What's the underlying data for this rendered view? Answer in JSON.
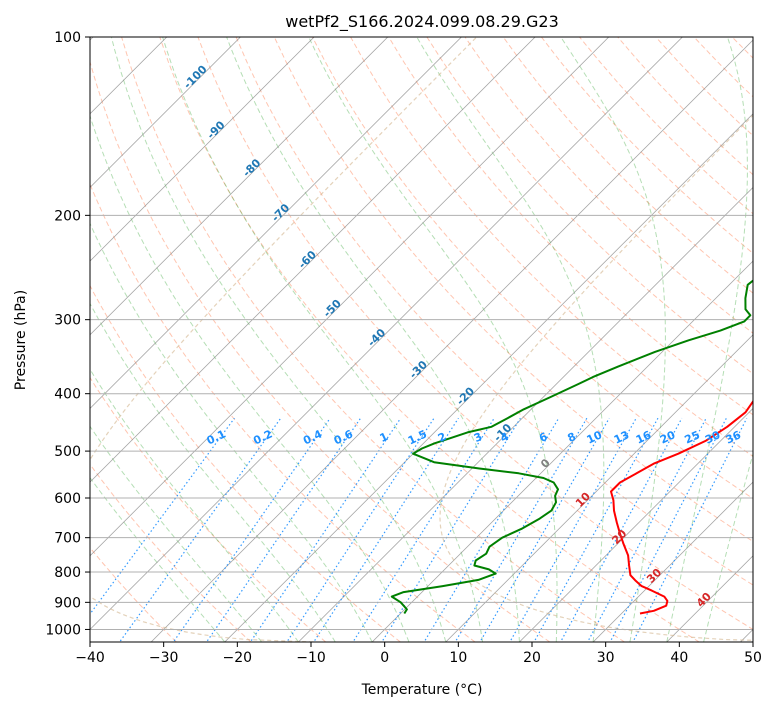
{
  "chart_data": {
    "type": "line",
    "title": "wetPf2_S166.2024.099.08.29.G23",
    "xlabel": "Temperature (°C)",
    "ylabel": "Pressure (hPa)",
    "xlim": [
      -40,
      50
    ],
    "ylim": [
      1050,
      100
    ],
    "y_scale": "log",
    "x_ticks": [
      "−40",
      "−30",
      "−20",
      "−10",
      "0",
      "10",
      "20",
      "30",
      "40",
      "50"
    ],
    "y_ticks": [
      "100",
      "200",
      "300",
      "400",
      "500",
      "600",
      "700",
      "800",
      "900",
      "1000"
    ],
    "grid": true,
    "series": [
      {
        "role": "temperature",
        "color": "#ff0000",
        "points": [
          [
            32.5,
            940
          ],
          [
            34,
            930
          ],
          [
            35,
            912
          ],
          [
            34.5,
            895
          ],
          [
            33.5,
            880
          ],
          [
            31,
            860
          ],
          [
            29,
            845
          ],
          [
            27.5,
            828
          ],
          [
            26,
            810
          ],
          [
            24.5,
            780
          ],
          [
            23,
            750
          ],
          [
            21,
            720
          ],
          [
            19,
            690
          ],
          [
            17,
            660
          ],
          [
            15,
            630
          ],
          [
            13.5,
            605
          ],
          [
            12,
            585
          ],
          [
            12,
            565
          ],
          [
            13,
            545
          ],
          [
            14,
            525
          ],
          [
            16,
            505
          ],
          [
            18,
            480
          ],
          [
            19,
            455
          ],
          [
            19.5,
            430
          ],
          [
            19,
            410
          ],
          [
            20,
            395
          ],
          [
            20.5,
            380
          ],
          [
            20,
            365
          ],
          [
            18.5,
            345
          ],
          [
            17,
            330
          ],
          [
            15.5,
            312
          ],
          [
            14,
            295
          ],
          [
            13,
            282
          ],
          [
            11.5,
            270
          ],
          [
            9.5,
            255
          ],
          [
            7.5,
            238
          ],
          [
            5.5,
            222
          ],
          [
            4,
            206
          ],
          [
            3,
            194
          ],
          [
            1.5,
            180
          ],
          [
            0,
            165
          ],
          [
            -1,
            150
          ],
          [
            -1.5,
            140
          ],
          [
            -2,
            130
          ],
          [
            -2.5,
            122
          ],
          [
            -2.5,
            116
          ],
          [
            -2,
            110
          ],
          [
            -1,
            104
          ],
          [
            0.5,
            100
          ]
        ]
      },
      {
        "role": "dewpoint",
        "color": "#008000",
        "points": [
          [
            0.5,
            940
          ],
          [
            0.3,
            925
          ],
          [
            -1.5,
            900
          ],
          [
            -3.5,
            880
          ],
          [
            -2.5,
            865
          ],
          [
            2,
            845
          ],
          [
            6,
            825
          ],
          [
            7.5,
            805
          ],
          [
            6,
            792
          ],
          [
            3.5,
            780
          ],
          [
            3,
            765
          ],
          [
            3.5,
            745
          ],
          [
            3,
            725
          ],
          [
            3.5,
            700
          ],
          [
            5,
            675
          ],
          [
            6,
            650
          ],
          [
            6.5,
            630
          ],
          [
            6,
            610
          ],
          [
            5,
            595
          ],
          [
            4.5,
            580
          ],
          [
            3,
            565
          ],
          [
            1,
            555
          ],
          [
            -3,
            545
          ],
          [
            -9,
            535
          ],
          [
            -16,
            522
          ],
          [
            -20,
            505
          ],
          [
            -19.5,
            495
          ],
          [
            -18.5,
            485
          ],
          [
            -17,
            475
          ],
          [
            -15.5,
            465
          ],
          [
            -13,
            455
          ],
          [
            -12,
            440
          ],
          [
            -11,
            425
          ],
          [
            -9,
            405
          ],
          [
            -7,
            385
          ],
          [
            -6,
            375
          ],
          [
            -4,
            360
          ],
          [
            -1,
            340
          ],
          [
            2,
            325
          ],
          [
            5,
            313
          ],
          [
            7,
            302
          ],
          [
            7,
            295
          ],
          [
            5.5,
            288
          ],
          [
            4,
            276
          ],
          [
            2.5,
            262
          ],
          [
            3,
            248
          ],
          [
            4.5,
            232
          ],
          [
            4,
            220
          ],
          [
            4.5,
            210
          ],
          [
            3,
            197
          ],
          [
            1,
            185
          ],
          [
            1,
            170
          ],
          [
            1,
            155
          ],
          [
            0,
            145
          ],
          [
            -0.5,
            135
          ],
          [
            -1,
            125
          ],
          [
            -1.5,
            112
          ],
          [
            -1,
            104
          ],
          [
            -1.5,
            100
          ]
        ]
      }
    ],
    "reference_lines": {
      "dry_adiabat_color": "#ff7f50",
      "moist_adiabat_color": "#2ca02c",
      "mixing_ratio_color": "#1e90ff",
      "isotherm_color": "#808080",
      "lcl_line_color": "#d2b48c"
    },
    "annotations": {
      "isotherm_labels": [
        "-100",
        "-90",
        "-80",
        "-70",
        "-60",
        "-50",
        "-40",
        "-30",
        "-20",
        "-10"
      ],
      "isotherm_label_color": "#1f77b4",
      "isotherm_labels_warm": [
        "0",
        "10",
        "20",
        "30",
        "40"
      ],
      "isotherm_label_color_zero": "#808080",
      "isotherm_label_color_warm": "#d62728",
      "mixing_ratio_labels": [
        "0.1",
        "0.2",
        "0.4",
        "0.6",
        "1",
        "1.5",
        "2",
        "3",
        "4",
        "6",
        "8",
        "10",
        "13",
        "16",
        "20",
        "25",
        "30",
        "36"
      ],
      "mixing_ratio_label_color": "#1e90ff"
    }
  }
}
